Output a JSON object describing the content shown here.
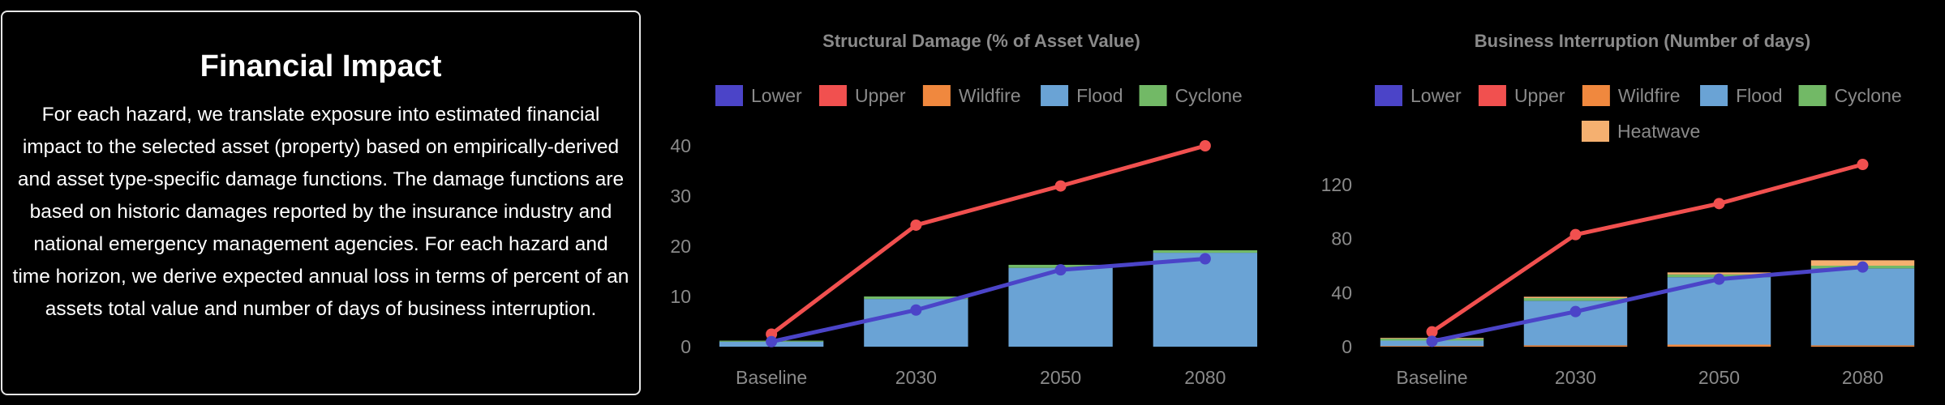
{
  "info": {
    "title": "Financial Impact",
    "body": "For each hazard, we translate exposure into estimated financial impact to the selected asset (property) based on empirically-derived and asset type-specific damage functions. The damage functions are based on historic damages reported by the insurance industry and national emergency management agencies. For each hazard and time horizon, we derive expected annual loss in terms of percent of an assets total value and number of days of business interruption."
  },
  "chart_data": [
    {
      "type": "bar",
      "title": "Structural Damage (% of Asset Value)",
      "categories": [
        "Baseline",
        "2030",
        "2050",
        "2080"
      ],
      "ylim": [
        0,
        40
      ],
      "yticks": [
        0,
        10,
        20,
        30,
        40
      ],
      "grid": false,
      "legend": "top",
      "stacked": true,
      "series": [
        {
          "name": "Lower",
          "kind": "line",
          "color": "#4b44c8",
          "values": [
            1,
            7.3,
            15.3,
            17.5
          ]
        },
        {
          "name": "Upper",
          "kind": "line",
          "color": "#f1504f",
          "values": [
            2.5,
            24.2,
            32,
            40
          ]
        },
        {
          "name": "Wildfire",
          "kind": "bar",
          "color": "#f0883e",
          "values": [
            0,
            0,
            0,
            0
          ]
        },
        {
          "name": "Flood",
          "kind": "bar",
          "color": "#6aa3d5",
          "values": [
            1,
            9.5,
            15.7,
            18.7
          ]
        },
        {
          "name": "Cyclone",
          "kind": "bar",
          "color": "#72b966",
          "values": [
            0.2,
            0.5,
            0.6,
            0.5
          ]
        }
      ]
    },
    {
      "type": "bar",
      "title": "Business Interruption (Number of days)",
      "categories": [
        "Baseline",
        "2030",
        "2050",
        "2080"
      ],
      "ylim": [
        0,
        150
      ],
      "yticks": [
        0,
        40,
        80,
        120
      ],
      "grid": false,
      "legend": "top",
      "stacked": true,
      "series": [
        {
          "name": "Lower",
          "kind": "line",
          "color": "#4b44c8",
          "values": [
            4,
            26,
            50,
            59
          ]
        },
        {
          "name": "Upper",
          "kind": "line",
          "color": "#f1504f",
          "values": [
            11,
            83,
            106,
            135
          ]
        },
        {
          "name": "Wildfire",
          "kind": "bar",
          "color": "#f0883e",
          "values": [
            0.5,
            1,
            1.5,
            1
          ]
        },
        {
          "name": "Flood",
          "kind": "bar",
          "color": "#6aa3d5",
          "values": [
            4,
            33,
            50,
            57
          ]
        },
        {
          "name": "Cyclone",
          "kind": "bar",
          "color": "#72b966",
          "values": [
            1.5,
            2,
            2,
            2
          ]
        },
        {
          "name": "Heatwave",
          "kind": "bar",
          "color": "#f5b070",
          "values": [
            0.5,
            1,
            1.5,
            4
          ]
        }
      ]
    }
  ]
}
